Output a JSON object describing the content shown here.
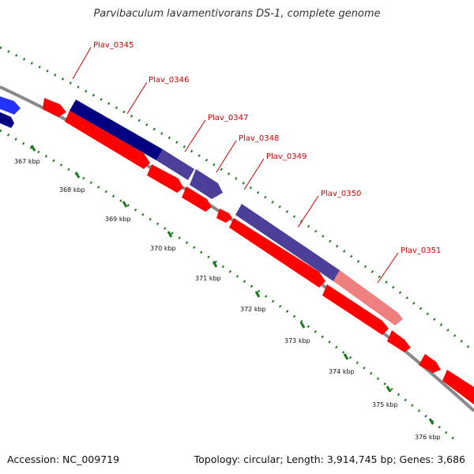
{
  "title": "Parvibaculum lavamentivorans DS-1, complete genome",
  "footer": {
    "accession": "Accession: NC_009719",
    "topology": "Topology: circular; Length: 3,914,745 bp; Genes: 3,686"
  },
  "genome_map": {
    "tick_labels": [
      "367 kbp",
      "368 kbp",
      "369 kbp",
      "370 kbp",
      "371 kbp",
      "372 kbp",
      "373 kbp",
      "374 kbp",
      "375 kbp",
      "376 kbp"
    ],
    "gene_labels": [
      "Plav_0345",
      "Plav_0346",
      "Plav_0347",
      "Plav_0348",
      "Plav_0349",
      "Plav_0350",
      "Plav_0351"
    ],
    "colors": {
      "backbone": "#888888",
      "label_text": "#cc0000",
      "gene_red": "#ff0000",
      "gene_navy": "#000080",
      "gene_slate": "#4b3f9a",
      "gene_pink": "#f08080",
      "gene_blue": "#2233ff",
      "tick_green": "#1a7a1a"
    }
  }
}
